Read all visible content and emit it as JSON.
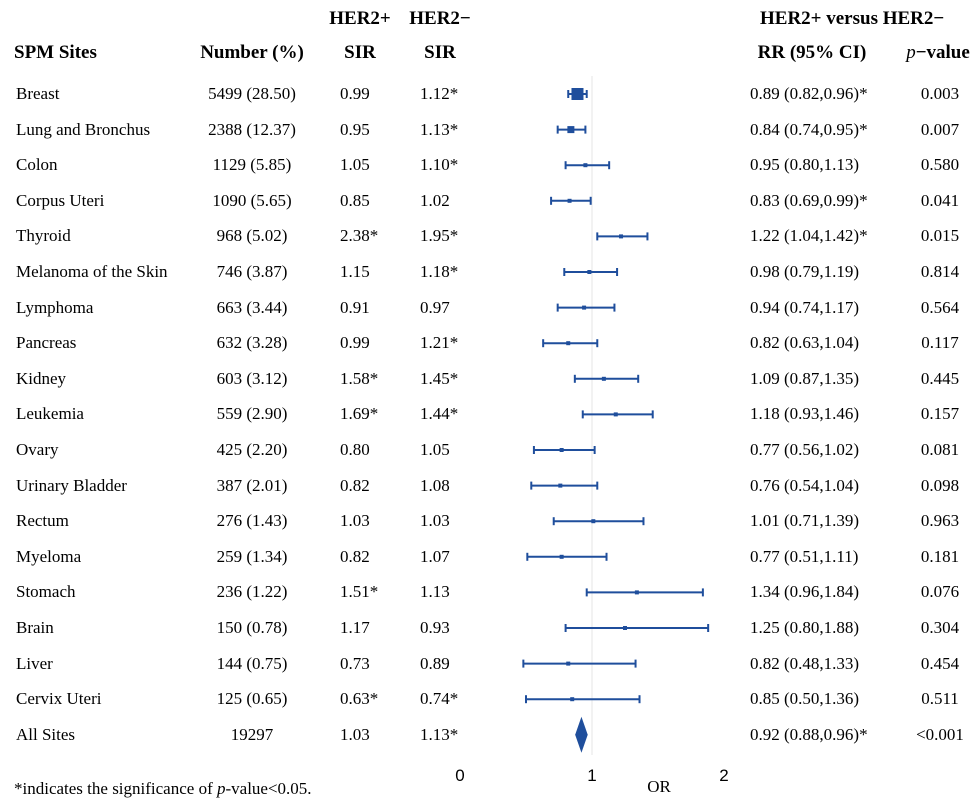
{
  "headers": {
    "site": "SPM Sites",
    "number": "Number (%)",
    "her2pos_top": "HER2+",
    "her2pos_bottom": "SIR",
    "her2neg_top": "HER2−",
    "her2neg_bottom": "SIR",
    "compare_top": "HER2+ versus HER2−",
    "rr": "RR (95% CI)",
    "pvalue_italic": "p",
    "pvalue_rest": "−value"
  },
  "footnote": {
    "before": "*indicates the significance of ",
    "italic": "p",
    "after": "-value<0.05."
  },
  "colors": {
    "marker": "#1f4e9c"
  },
  "chart_data": {
    "type": "forest",
    "xlabel": "OR",
    "xlim": [
      0,
      2
    ],
    "ticks": [
      "0",
      "1",
      "2"
    ],
    "reference_line": 1,
    "rows": [
      {
        "site": "Breast",
        "number": "5499 (28.50)",
        "sir_pos": "0.99",
        "sir_neg": "1.12*",
        "rr_text": "0.89 (0.82,0.96)*",
        "p": "0.003",
        "rr": 0.89,
        "lo": 0.82,
        "hi": 0.96
      },
      {
        "site": "Lung and Bronchus",
        "number": "2388 (12.37)",
        "sir_pos": "0.95",
        "sir_neg": "1.13*",
        "rr_text": "0.84 (0.74,0.95)*",
        "p": "0.007",
        "rr": 0.84,
        "lo": 0.74,
        "hi": 0.95
      },
      {
        "site": "Colon",
        "number": "1129 (5.85)",
        "sir_pos": "1.05",
        "sir_neg": "1.10*",
        "rr_text": "0.95 (0.80,1.13)",
        "p": "0.580",
        "rr": 0.95,
        "lo": 0.8,
        "hi": 1.13
      },
      {
        "site": "Corpus Uteri",
        "number": "1090 (5.65)",
        "sir_pos": "0.85",
        "sir_neg": "1.02",
        "rr_text": "0.83 (0.69,0.99)*",
        "p": "0.041",
        "rr": 0.83,
        "lo": 0.69,
        "hi": 0.99
      },
      {
        "site": "Thyroid",
        "number": "968 (5.02)",
        "sir_pos": "2.38*",
        "sir_neg": "1.95*",
        "rr_text": "1.22 (1.04,1.42)*",
        "p": "0.015",
        "rr": 1.22,
        "lo": 1.04,
        "hi": 1.42
      },
      {
        "site": "Melanoma of the Skin",
        "number": "746 (3.87)",
        "sir_pos": "1.15",
        "sir_neg": "1.18*",
        "rr_text": "0.98 (0.79,1.19)",
        "p": "0.814",
        "rr": 0.98,
        "lo": 0.79,
        "hi": 1.19
      },
      {
        "site": "Lymphoma",
        "number": "663 (3.44)",
        "sir_pos": "0.91",
        "sir_neg": "0.97",
        "rr_text": "0.94 (0.74,1.17)",
        "p": "0.564",
        "rr": 0.94,
        "lo": 0.74,
        "hi": 1.17
      },
      {
        "site": "Pancreas",
        "number": "632 (3.28)",
        "sir_pos": "0.99",
        "sir_neg": "1.21*",
        "rr_text": "0.82 (0.63,1.04)",
        "p": "0.117",
        "rr": 0.82,
        "lo": 0.63,
        "hi": 1.04
      },
      {
        "site": "Kidney",
        "number": "603 (3.12)",
        "sir_pos": "1.58*",
        "sir_neg": "1.45*",
        "rr_text": "1.09 (0.87,1.35)",
        "p": "0.445",
        "rr": 1.09,
        "lo": 0.87,
        "hi": 1.35
      },
      {
        "site": "Leukemia",
        "number": "559 (2.90)",
        "sir_pos": "1.69*",
        "sir_neg": "1.44*",
        "rr_text": "1.18 (0.93,1.46)",
        "p": "0.157",
        "rr": 1.18,
        "lo": 0.93,
        "hi": 1.46
      },
      {
        "site": "Ovary",
        "number": "425 (2.20)",
        "sir_pos": "0.80",
        "sir_neg": "1.05",
        "rr_text": "0.77 (0.56,1.02)",
        "p": "0.081",
        "rr": 0.77,
        "lo": 0.56,
        "hi": 1.02
      },
      {
        "site": "Urinary Bladder",
        "number": "387 (2.01)",
        "sir_pos": "0.82",
        "sir_neg": "1.08",
        "rr_text": "0.76 (0.54,1.04)",
        "p": "0.098",
        "rr": 0.76,
        "lo": 0.54,
        "hi": 1.04
      },
      {
        "site": "Rectum",
        "number": "276 (1.43)",
        "sir_pos": "1.03",
        "sir_neg": "1.03",
        "rr_text": "1.01 (0.71,1.39)",
        "p": "0.963",
        "rr": 1.01,
        "lo": 0.71,
        "hi": 1.39
      },
      {
        "site": "Myeloma",
        "number": "259 (1.34)",
        "sir_pos": "0.82",
        "sir_neg": "1.07",
        "rr_text": "0.77 (0.51,1.11)",
        "p": "0.181",
        "rr": 0.77,
        "lo": 0.51,
        "hi": 1.11
      },
      {
        "site": "Stomach",
        "number": "236 (1.22)",
        "sir_pos": "1.51*",
        "sir_neg": "1.13",
        "rr_text": "1.34 (0.96,1.84)",
        "p": "0.076",
        "rr": 1.34,
        "lo": 0.96,
        "hi": 1.84
      },
      {
        "site": "Brain",
        "number": "150 (0.78)",
        "sir_pos": "1.17",
        "sir_neg": "0.93",
        "rr_text": "1.25 (0.80,1.88)",
        "p": "0.304",
        "rr": 1.25,
        "lo": 0.8,
        "hi": 1.88
      },
      {
        "site": "Liver",
        "number": "144 (0.75)",
        "sir_pos": "0.73",
        "sir_neg": "0.89",
        "rr_text": "0.82 (0.48,1.33)",
        "p": "0.454",
        "rr": 0.82,
        "lo": 0.48,
        "hi": 1.33
      },
      {
        "site": "Cervix Uteri",
        "number": "125 (0.65)",
        "sir_pos": "0.63*",
        "sir_neg": "0.74*",
        "rr_text": "0.85 (0.50,1.36)",
        "p": "0.511",
        "rr": 0.85,
        "lo": 0.5,
        "hi": 1.36
      }
    ],
    "summary": {
      "site": "All Sites",
      "number": "19297",
      "sir_pos": "1.03",
      "sir_neg": "1.13*",
      "rr_text": "0.92 (0.88,0.96)*",
      "p": "<0.001",
      "rr": 0.92,
      "lo": 0.88,
      "hi": 0.96
    }
  }
}
